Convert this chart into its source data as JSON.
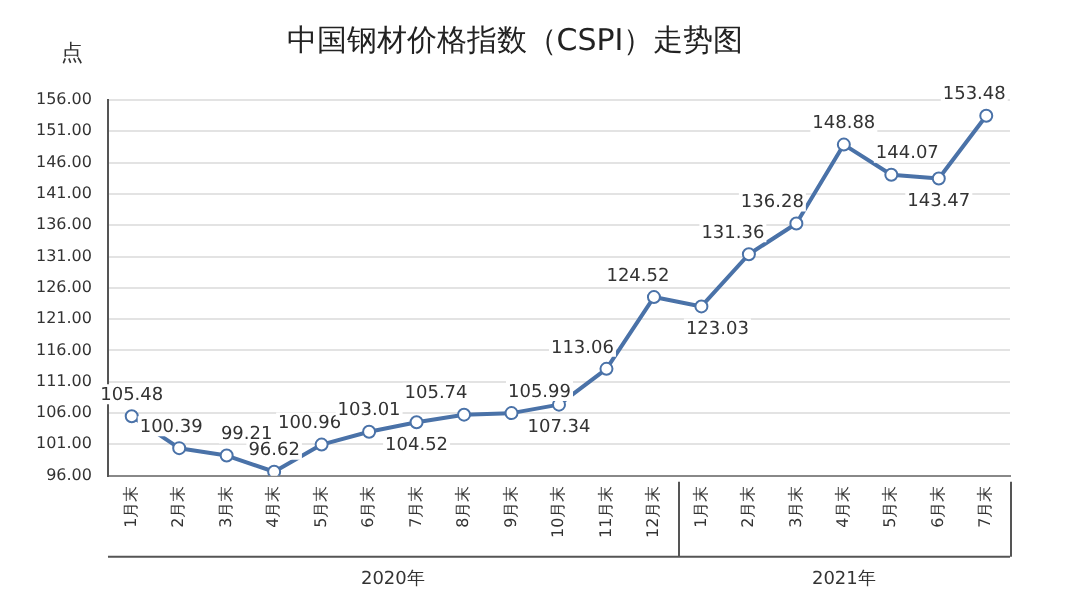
{
  "chart_data": {
    "type": "line",
    "title": "中国钢材价格指数（CSPI）走势图",
    "ylabel": "点",
    "categories": [
      "1月末",
      "2月末",
      "3月末",
      "4月末",
      "5月末",
      "6月末",
      "7月末",
      "8月末",
      "9月末",
      "10月末",
      "11月末",
      "12月末",
      "1月末",
      "2月末",
      "3月末",
      "4月末",
      "5月末",
      "6月末",
      "7月末"
    ],
    "series": [
      {
        "color": "#4a72a8",
        "values": [
          105.48,
          100.39,
          99.21,
          96.62,
          100.96,
          103.01,
          104.52,
          105.74,
          105.99,
          107.34,
          113.06,
          124.52,
          123.03,
          131.36,
          136.28,
          148.88,
          144.07,
          143.47,
          153.48
        ]
      }
    ],
    "ylim": [
      96,
      156
    ],
    "yticks": [
      {
        "value": 96,
        "label": "96.00"
      },
      {
        "value": 101,
        "label": "101.00"
      },
      {
        "value": 106,
        "label": "106.00"
      },
      {
        "value": 111,
        "label": "111.00"
      },
      {
        "value": 116,
        "label": "116.00"
      },
      {
        "value": 121,
        "label": "121.00"
      },
      {
        "value": 126,
        "label": "126.00"
      },
      {
        "value": 131,
        "label": "131.00"
      },
      {
        "value": 136,
        "label": "136.00"
      },
      {
        "value": 141,
        "label": "141.00"
      },
      {
        "value": 146,
        "label": "146.00"
      },
      {
        "value": 151,
        "label": "151.00"
      },
      {
        "value": 156,
        "label": "156.00"
      }
    ],
    "annotations": [
      "2020年",
      "2021年"
    ],
    "grid": "y",
    "marker": "circle",
    "line_style": "solid",
    "data_labels": true,
    "legend": false
  }
}
